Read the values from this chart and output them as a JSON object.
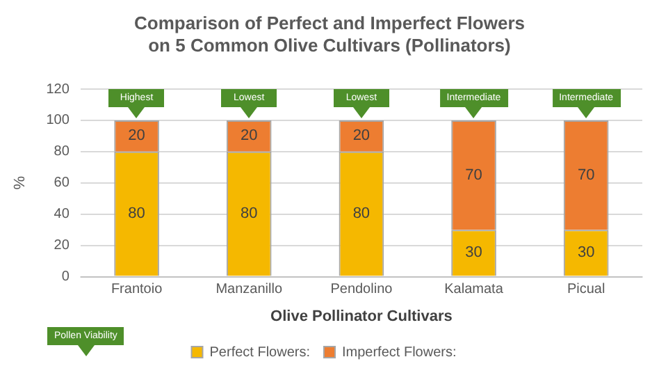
{
  "chart_data": {
    "type": "bar",
    "title": "Comparison of Perfect and Imperfect Flowers on 5 Common Olive Cultivars (Pollinators)",
    "xlabel": "Olive Pollinator Cultivars",
    "ylabel": "%",
    "categories": [
      "Frantoio",
      "Manzanillo",
      "Pendolino",
      "Kalamata",
      "Picual"
    ],
    "series": [
      {
        "name": "Perfect Flowers:",
        "color": "#f5b800",
        "values": [
          80,
          80,
          80,
          30,
          30
        ]
      },
      {
        "name": "Imperfect Flowers:",
        "color": "#ed7d31",
        "values": [
          20,
          20,
          20,
          70,
          70
        ]
      }
    ],
    "stacked": true,
    "ylim": [
      0,
      120
    ],
    "yticks": [
      0,
      20,
      40,
      60,
      80,
      100,
      120
    ],
    "grid": "y",
    "legend": "bottom",
    "data_labels": true,
    "annotations": [
      {
        "text": "Highest",
        "x": "Frantoio",
        "y": 100
      },
      {
        "text": "Lowest",
        "x": "Manzanillo",
        "y": 100
      },
      {
        "text": "Lowest",
        "x": "Pendolino",
        "y": 100
      },
      {
        "text": "Intermediate",
        "x": "Kalamata",
        "y": 100
      },
      {
        "text": "Intermediate",
        "x": "Picual",
        "y": 100
      },
      "Pollen Viability"
    ]
  }
}
